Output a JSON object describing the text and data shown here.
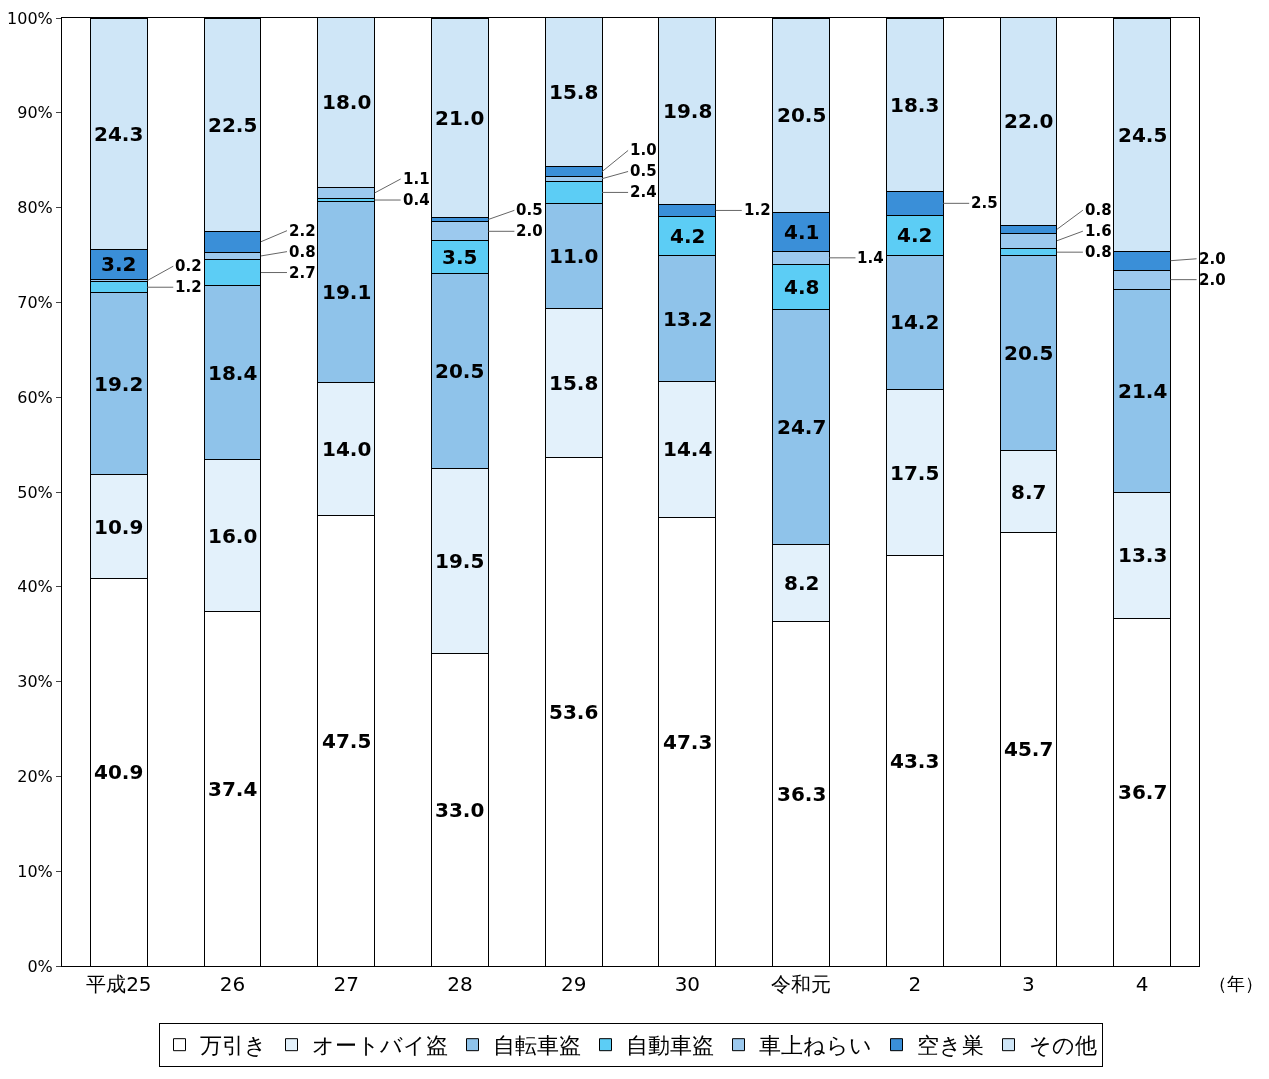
{
  "chart_data": {
    "type": "bar",
    "stacked": true,
    "categories": [
      "平成25",
      "26",
      "27",
      "28",
      "29",
      "30",
      "令和元",
      "2",
      "3",
      "4"
    ],
    "series": [
      {
        "name": "万引き",
        "color": "#ffffff",
        "values": [
          40.9,
          37.4,
          47.5,
          33.0,
          53.6,
          47.3,
          36.3,
          43.3,
          45.7,
          36.7
        ],
        "value_labels": [
          "40.9",
          "37.4",
          "47.5",
          "33.0",
          "53.6",
          "47.3",
          "36.3",
          "43.3",
          "45.7",
          "36.7"
        ]
      },
      {
        "name": "オートバイ盗",
        "color": "#e3f1fb",
        "values": [
          10.9,
          16.0,
          14.0,
          19.5,
          15.8,
          14.4,
          8.2,
          17.5,
          8.7,
          13.3
        ],
        "value_labels": [
          "10.9",
          "16.0",
          "14.0",
          "19.5",
          "15.8",
          "14.4",
          "8.2",
          "17.5",
          "8.7",
          "13.3"
        ]
      },
      {
        "name": "自転車盗",
        "color": "#8fc3ea",
        "values": [
          19.2,
          18.4,
          19.1,
          20.5,
          11.0,
          13.2,
          24.7,
          14.2,
          20.5,
          21.4
        ],
        "value_labels": [
          "19.2",
          "18.4",
          "19.1",
          "20.5",
          "11.0",
          "13.2",
          "24.7",
          "14.2",
          "20.5",
          "21.4"
        ]
      },
      {
        "name": "自動車盗",
        "color": "#5ccdf5",
        "values": [
          1.2,
          2.7,
          0.4,
          3.5,
          2.4,
          4.2,
          4.8,
          4.2,
          0.8,
          null
        ],
        "value_labels": [
          "1.2",
          "2.7",
          "0.4",
          "3.5",
          "2.4",
          "4.2",
          "4.8",
          "4.2",
          "0.8",
          null
        ]
      },
      {
        "name": "車上ねらい",
        "color": "#9cc9ee",
        "values": [
          0.2,
          0.8,
          1.1,
          2.0,
          0.5,
          null,
          1.4,
          null,
          1.6,
          2.0
        ],
        "value_labels": [
          "0.2",
          "0.8",
          "1.1",
          "2.0",
          "0.5",
          null,
          "1.4",
          null,
          "1.6",
          "2.0"
        ]
      },
      {
        "name": "空き巣",
        "color": "#3a8fd8",
        "values": [
          3.2,
          2.2,
          null,
          0.5,
          1.0,
          1.2,
          4.1,
          2.5,
          0.8,
          2.0
        ],
        "value_labels": [
          "3.2",
          "2.2",
          null,
          "0.5",
          "1.0",
          "1.2",
          "4.1",
          "2.5",
          "0.8",
          "2.0"
        ]
      },
      {
        "name": "その他",
        "color": "#cfe6f7",
        "values": [
          24.3,
          22.5,
          18.0,
          21.0,
          15.8,
          19.8,
          20.5,
          18.3,
          22.0,
          24.5
        ],
        "value_labels": [
          "24.3",
          "22.5",
          "18.0",
          "21.0",
          "15.8",
          "19.8",
          "20.5",
          "18.3",
          "22.0",
          "24.5"
        ]
      }
    ],
    "ylim": [
      0,
      100
    ],
    "yticks": [
      {
        "value": 0,
        "label": "0%"
      },
      {
        "value": 10,
        "label": "10%"
      },
      {
        "value": 20,
        "label": "20%"
      },
      {
        "value": 30,
        "label": "30%"
      },
      {
        "value": 40,
        "label": "40%"
      },
      {
        "value": 50,
        "label": "50%"
      },
      {
        "value": 60,
        "label": "60%"
      },
      {
        "value": 70,
        "label": "70%"
      },
      {
        "value": 80,
        "label": "80%"
      },
      {
        "value": 90,
        "label": "90%"
      },
      {
        "value": 100,
        "label": "100%"
      }
    ],
    "annotations": [
      "（年）"
    ],
    "grid": false,
    "legend": "bottom"
  }
}
